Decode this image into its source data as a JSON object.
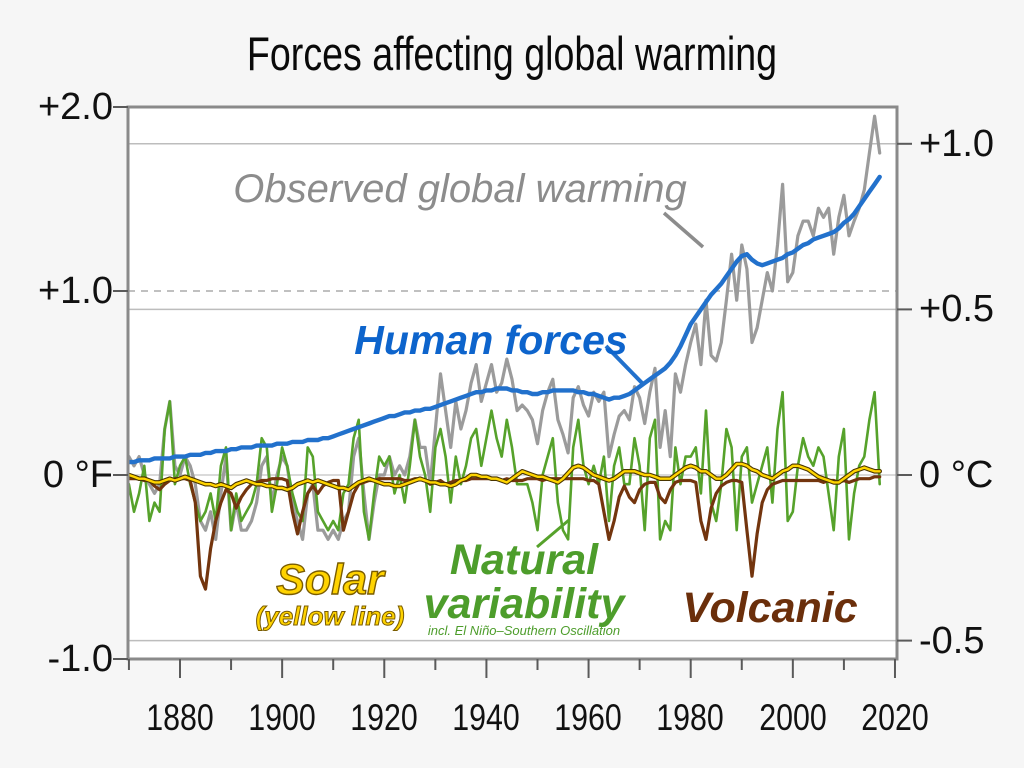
{
  "title": "Forces affecting global warming",
  "page_bg": "#f6f6f6",
  "axes": {
    "left": {
      "unit": "°F",
      "labels": [
        "+2.0",
        "+1.0",
        "0 °F",
        "-1.0"
      ],
      "values_f": [
        2.0,
        1.0,
        0.0,
        -1.0
      ]
    },
    "right": {
      "unit": "°C",
      "labels": [
        "+1.0",
        "+0.5",
        "0 °C",
        "-0.5"
      ],
      "values_c": [
        1.0,
        0.5,
        0.0,
        -0.5
      ]
    },
    "x": {
      "labels": [
        "1880",
        "1900",
        "1920",
        "1940",
        "1960",
        "1980",
        "2000",
        "2020"
      ],
      "major_ticks": [
        1880,
        1900,
        1920,
        1940,
        1960,
        1980,
        2000,
        2020
      ],
      "minor_ticks": [
        1870,
        1890,
        1910,
        1930,
        1950,
        1970,
        1990,
        2010
      ],
      "range": [
        1870,
        2020
      ]
    }
  },
  "annotations": {
    "observed": {
      "label": "Observed global warming",
      "color": "#8c8c8c"
    },
    "human": {
      "label": "Human forces",
      "color": "#0d64cc"
    },
    "solar": {
      "label": "Solar",
      "sub": "(yellow line)",
      "color": "#ffd300",
      "outline": "#7a5c00"
    },
    "natural": {
      "line1": "Natural",
      "line2": "variability",
      "sub": "incl. El Niño–Southern Oscillation",
      "color": "#4d9d2b"
    },
    "volcanic": {
      "label": "Volcanic",
      "color": "#6b2f0b"
    }
  },
  "chart_data": {
    "type": "line",
    "title": "Forces affecting global warming",
    "x_axis": {
      "label": "year",
      "range": [
        1870,
        2020
      ],
      "tick_step": 10,
      "label_step": 20
    },
    "y_axis_left": {
      "unit": "°F",
      "range": [
        -1.0,
        2.0
      ]
    },
    "y_axis_right": {
      "unit": "°C",
      "range": [
        -0.556,
        1.111
      ]
    },
    "gridlines": {
      "solid_c": [
        1.0,
        0.5,
        -0.5
      ],
      "dashed_f": [
        1.0
      ],
      "zero_f": 0.0
    },
    "style": {
      "frame": "#8a8a8a",
      "grid_solid": "#bdbdbd",
      "grid_dashed": "#ababab",
      "grid_zero": "#c4c4c4",
      "tick": "#5a5a5a",
      "plot_bg": "#ffffff"
    },
    "years": {
      "start": 1870,
      "end": 2017,
      "step": 1
    },
    "unit": "°F",
    "series": [
      {
        "id": "observed",
        "name": "Observed global warming",
        "color": "#9b9b9b",
        "width": 3.2,
        "values": [
          0.1,
          0.05,
          0.1,
          0.0,
          -0.05,
          -0.1,
          -0.05,
          0.25,
          0.4,
          0.05,
          0.0,
          0.1,
          0.05,
          -0.05,
          -0.25,
          -0.3,
          -0.2,
          -0.35,
          -0.1,
          0.1,
          -0.3,
          -0.15,
          -0.3,
          -0.3,
          -0.25,
          -0.15,
          0.05,
          0.1,
          -0.15,
          0.0,
          0.1,
          0.05,
          -0.15,
          -0.25,
          -0.35,
          -0.1,
          -0.05,
          -0.3,
          -0.3,
          -0.35,
          -0.3,
          -0.35,
          -0.25,
          -0.2,
          0.1,
          0.2,
          -0.1,
          -0.35,
          -0.15,
          0.0,
          0.0,
          0.1,
          0.0,
          0.05,
          0.0,
          0.1,
          0.3,
          0.15,
          0.15,
          -0.05,
          0.25,
          0.55,
          0.35,
          0.15,
          0.4,
          0.25,
          0.35,
          0.5,
          0.6,
          0.4,
          0.5,
          0.6,
          0.45,
          0.5,
          0.63,
          0.52,
          0.35,
          0.38,
          0.35,
          0.3,
          0.17,
          0.35,
          0.45,
          0.52,
          0.3,
          0.22,
          0.12,
          0.42,
          0.48,
          0.38,
          0.32,
          0.45,
          0.4,
          0.45,
          0.1,
          0.22,
          0.32,
          0.35,
          0.3,
          0.48,
          0.42,
          0.28,
          0.45,
          0.58,
          0.15,
          0.35,
          0.1,
          0.55,
          0.45,
          0.6,
          0.72,
          0.82,
          0.6,
          0.95,
          0.65,
          0.62,
          0.72,
          0.95,
          1.2,
          0.95,
          1.25,
          1.12,
          0.72,
          0.8,
          0.95,
          1.1,
          1.0,
          1.25,
          1.58,
          1.05,
          1.1,
          1.3,
          1.38,
          1.38,
          1.3,
          1.45,
          1.4,
          1.45,
          1.2,
          1.4,
          1.52,
          1.3,
          1.38,
          1.45,
          1.55,
          1.75,
          1.95,
          1.75
        ]
      },
      {
        "id": "natural",
        "name": "Natural variability (incl. El Niño–Southern Oscillation)",
        "color": "#56a22b",
        "width": 2.6,
        "values": [
          -0.05,
          -0.2,
          -0.1,
          0.05,
          -0.25,
          -0.15,
          -0.2,
          0.25,
          0.4,
          -0.05,
          0.05,
          0.1,
          -0.05,
          -0.15,
          -0.25,
          -0.2,
          -0.1,
          -0.25,
          0.05,
          0.15,
          -0.3,
          -0.1,
          -0.25,
          -0.2,
          -0.15,
          -0.05,
          0.2,
          0.15,
          -0.2,
          -0.05,
          0.15,
          0.05,
          -0.1,
          -0.2,
          -0.25,
          0.15,
          0.1,
          -0.2,
          -0.25,
          -0.3,
          -0.25,
          -0.3,
          -0.1,
          -0.05,
          0.2,
          0.3,
          -0.2,
          -0.35,
          -0.1,
          0.1,
          0.05,
          0.1,
          -0.1,
          0.0,
          -0.15,
          0.05,
          0.3,
          0.1,
          0.0,
          -0.2,
          0.15,
          0.25,
          0.1,
          -0.15,
          0.1,
          -0.05,
          0.05,
          0.2,
          0.25,
          0.05,
          0.2,
          0.35,
          0.2,
          0.1,
          0.3,
          0.15,
          -0.05,
          -0.05,
          -0.05,
          -0.15,
          -0.3,
          0.0,
          0.1,
          0.2,
          -0.15,
          -0.3,
          -0.35,
          0.15,
          0.3,
          0.05,
          -0.05,
          0.05,
          -0.05,
          0.1,
          -0.25,
          0.05,
          0.15,
          -0.05,
          -0.05,
          0.2,
          0.05,
          -0.3,
          0.2,
          0.3,
          -0.35,
          -0.25,
          -0.3,
          0.15,
          -0.05,
          0.1,
          0.1,
          0.15,
          -0.1,
          0.35,
          -0.15,
          -0.25,
          -0.05,
          0.25,
          0.15,
          -0.3,
          0.1,
          0.15,
          -0.15,
          -0.05,
          0.05,
          0.15,
          -0.15,
          0.25,
          0.45,
          -0.25,
          -0.2,
          0.05,
          0.2,
          0.1,
          0.05,
          0.15,
          0.1,
          -0.1,
          -0.3,
          0.1,
          0.25,
          -0.35,
          -0.1,
          0.05,
          0.1,
          0.3,
          0.45,
          -0.05
        ]
      },
      {
        "id": "volcanic",
        "name": "Volcanic",
        "color": "#73350e",
        "width": 3.2,
        "values": [
          -0.02,
          -0.02,
          -0.02,
          -0.03,
          -0.03,
          -0.06,
          -0.08,
          -0.05,
          -0.03,
          -0.02,
          -0.02,
          -0.02,
          -0.03,
          -0.15,
          -0.55,
          -0.62,
          -0.4,
          -0.25,
          -0.15,
          -0.08,
          -0.1,
          -0.18,
          -0.12,
          -0.08,
          -0.05,
          -0.04,
          -0.03,
          -0.03,
          -0.02,
          -0.02,
          -0.02,
          -0.03,
          -0.2,
          -0.32,
          -0.2,
          -0.1,
          -0.06,
          -0.1,
          -0.06,
          -0.04,
          -0.03,
          -0.03,
          -0.3,
          -0.2,
          -0.1,
          -0.05,
          -0.04,
          -0.03,
          -0.03,
          -0.02,
          -0.02,
          -0.02,
          -0.02,
          -0.02,
          -0.03,
          -0.03,
          -0.02,
          -0.02,
          -0.03,
          -0.05,
          -0.04,
          -0.03,
          -0.05,
          -0.04,
          -0.03,
          -0.03,
          -0.03,
          -0.02,
          -0.02,
          -0.02,
          -0.02,
          -0.02,
          -0.02,
          -0.03,
          -0.02,
          -0.03,
          -0.03,
          -0.03,
          -0.02,
          -0.02,
          -0.02,
          -0.03,
          -0.02,
          -0.02,
          -0.02,
          -0.02,
          -0.02,
          -0.02,
          -0.02,
          -0.02,
          -0.03,
          -0.03,
          -0.05,
          -0.2,
          -0.35,
          -0.25,
          -0.12,
          -0.06,
          -0.12,
          -0.15,
          -0.08,
          -0.05,
          -0.04,
          -0.04,
          -0.12,
          -0.15,
          -0.08,
          -0.04,
          -0.03,
          -0.03,
          -0.03,
          -0.04,
          -0.25,
          -0.35,
          -0.18,
          -0.1,
          -0.06,
          -0.04,
          -0.03,
          -0.03,
          -0.04,
          -0.3,
          -0.55,
          -0.32,
          -0.15,
          -0.08,
          -0.05,
          -0.04,
          -0.03,
          -0.03,
          -0.03,
          -0.03,
          -0.03,
          -0.03,
          -0.03,
          -0.03,
          -0.04,
          -0.03,
          -0.03,
          -0.04,
          -0.03,
          -0.04,
          -0.03,
          -0.02,
          -0.02,
          -0.02,
          -0.01,
          -0.01
        ]
      },
      {
        "id": "solar",
        "name": "Solar",
        "color": "#ffd400",
        "outline_color": "#4a3500",
        "width": 2.4,
        "values": [
          0.0,
          -0.01,
          -0.02,
          -0.02,
          -0.03,
          -0.04,
          -0.04,
          -0.03,
          -0.02,
          -0.03,
          -0.02,
          -0.01,
          -0.02,
          -0.03,
          -0.04,
          -0.05,
          -0.05,
          -0.06,
          -0.05,
          -0.06,
          -0.07,
          -0.05,
          -0.04,
          -0.03,
          -0.04,
          -0.05,
          -0.05,
          -0.06,
          -0.06,
          -0.07,
          -0.07,
          -0.08,
          -0.07,
          -0.05,
          -0.04,
          -0.03,
          -0.04,
          -0.03,
          -0.04,
          -0.05,
          -0.06,
          -0.07,
          -0.07,
          -0.08,
          -0.06,
          -0.04,
          -0.03,
          -0.02,
          -0.03,
          -0.04,
          -0.05,
          -0.05,
          -0.06,
          -0.06,
          -0.05,
          -0.04,
          -0.03,
          -0.02,
          -0.03,
          -0.04,
          -0.04,
          -0.05,
          -0.05,
          -0.06,
          -0.05,
          -0.03,
          -0.02,
          0.0,
          0.0,
          -0.01,
          -0.01,
          -0.02,
          -0.02,
          -0.03,
          -0.04,
          -0.02,
          0.0,
          0.02,
          0.01,
          0.0,
          -0.01,
          -0.01,
          -0.02,
          -0.03,
          -0.04,
          -0.02,
          0.01,
          0.04,
          0.05,
          0.04,
          0.02,
          0.0,
          -0.01,
          -0.02,
          -0.03,
          -0.02,
          0.0,
          0.02,
          0.02,
          0.02,
          0.01,
          0.0,
          0.0,
          -0.01,
          -0.02,
          -0.02,
          -0.02,
          0.0,
          0.02,
          0.04,
          0.05,
          0.04,
          0.02,
          0.02,
          0.0,
          -0.02,
          -0.02,
          0.0,
          0.03,
          0.06,
          0.06,
          0.05,
          0.03,
          0.02,
          0.0,
          -0.01,
          -0.02,
          0.0,
          0.02,
          0.03,
          0.05,
          0.05,
          0.04,
          0.03,
          0.01,
          -0.01,
          -0.02,
          -0.03,
          -0.04,
          -0.04,
          -0.02,
          0.0,
          0.02,
          0.03,
          0.04,
          0.03,
          0.02,
          0.02
        ]
      },
      {
        "id": "human",
        "name": "Human forces",
        "color": "#2271cc",
        "width": 4.4,
        "values": [
          0.07,
          0.07,
          0.08,
          0.08,
          0.08,
          0.09,
          0.09,
          0.09,
          0.09,
          0.1,
          0.1,
          0.1,
          0.11,
          0.11,
          0.11,
          0.12,
          0.12,
          0.13,
          0.13,
          0.13,
          0.14,
          0.14,
          0.15,
          0.15,
          0.15,
          0.16,
          0.16,
          0.16,
          0.16,
          0.17,
          0.17,
          0.17,
          0.18,
          0.18,
          0.18,
          0.19,
          0.19,
          0.19,
          0.2,
          0.2,
          0.21,
          0.22,
          0.23,
          0.24,
          0.25,
          0.26,
          0.27,
          0.28,
          0.29,
          0.3,
          0.31,
          0.32,
          0.32,
          0.33,
          0.34,
          0.34,
          0.35,
          0.35,
          0.36,
          0.36,
          0.37,
          0.38,
          0.39,
          0.4,
          0.41,
          0.42,
          0.43,
          0.44,
          0.45,
          0.45,
          0.46,
          0.46,
          0.47,
          0.47,
          0.47,
          0.46,
          0.46,
          0.45,
          0.45,
          0.44,
          0.44,
          0.45,
          0.45,
          0.46,
          0.46,
          0.46,
          0.46,
          0.46,
          0.45,
          0.45,
          0.44,
          0.44,
          0.43,
          0.42,
          0.41,
          0.42,
          0.42,
          0.43,
          0.44,
          0.46,
          0.48,
          0.5,
          0.52,
          0.54,
          0.56,
          0.58,
          0.61,
          0.65,
          0.7,
          0.76,
          0.82,
          0.86,
          0.9,
          0.94,
          0.98,
          1.01,
          1.04,
          1.08,
          1.12,
          1.16,
          1.19,
          1.2,
          1.17,
          1.15,
          1.14,
          1.15,
          1.16,
          1.17,
          1.18,
          1.2,
          1.21,
          1.23,
          1.25,
          1.26,
          1.28,
          1.29,
          1.3,
          1.31,
          1.32,
          1.34,
          1.37,
          1.39,
          1.42,
          1.46,
          1.5,
          1.54,
          1.58,
          1.62
        ]
      }
    ]
  }
}
